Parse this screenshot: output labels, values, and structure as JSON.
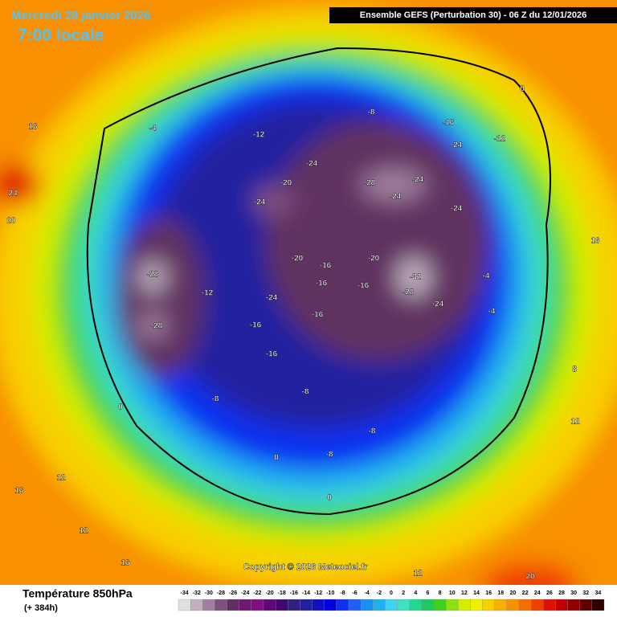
{
  "header": {
    "date": "Mercredi 28 janvier 2026",
    "time": "7:00 locale",
    "run": "Ensemble GEFS  (Perturbation 30)  -  06 Z du 12/01/2026",
    "copyright": "Copyright © 2026 Meteociel.fr"
  },
  "legend": {
    "title": "Température 850hPa",
    "subtitle": "(+ 384h)",
    "ticks": [
      -34,
      -32,
      -30,
      -28,
      -26,
      -24,
      -22,
      -20,
      -18,
      -16,
      -14,
      -12,
      -10,
      -8,
      -6,
      -4,
      -2,
      0,
      2,
      4,
      6,
      8,
      10,
      12,
      14,
      16,
      18,
      20,
      22,
      24,
      26,
      28,
      30,
      32,
      34
    ],
    "colors": [
      "#e0e0e0",
      "#c0b0c0",
      "#a080a0",
      "#805080",
      "#603060",
      "#701870",
      "#801080",
      "#600878",
      "#400870",
      "#302080",
      "#2020a0",
      "#1010c0",
      "#0000e0",
      "#1030f0",
      "#2060f0",
      "#1890f0",
      "#20b0f0",
      "#40d0f0",
      "#40e0c0",
      "#20d890",
      "#20c860",
      "#40d020",
      "#90e010",
      "#d0f000",
      "#f0f000",
      "#f8d000",
      "#f8b000",
      "#f89000",
      "#f07000",
      "#f04000",
      "#e01000",
      "#c00000",
      "#900000",
      "#600000",
      "#300000"
    ]
  },
  "map": {
    "labels": [
      -28,
      -28,
      -24,
      -24,
      -32,
      -28,
      -24,
      -28,
      -24,
      -24,
      -24,
      -24,
      -24,
      -20,
      -20,
      -20,
      -16,
      -16,
      -16,
      -16,
      -16,
      -16,
      -12,
      -8,
      -16,
      -12,
      -12,
      -4,
      -8,
      -8,
      -8,
      -8,
      -4,
      -4,
      0,
      0,
      0,
      0,
      12,
      12,
      16,
      16,
      24,
      20,
      20,
      12,
      12,
      16,
      8,
      16
    ]
  }
}
